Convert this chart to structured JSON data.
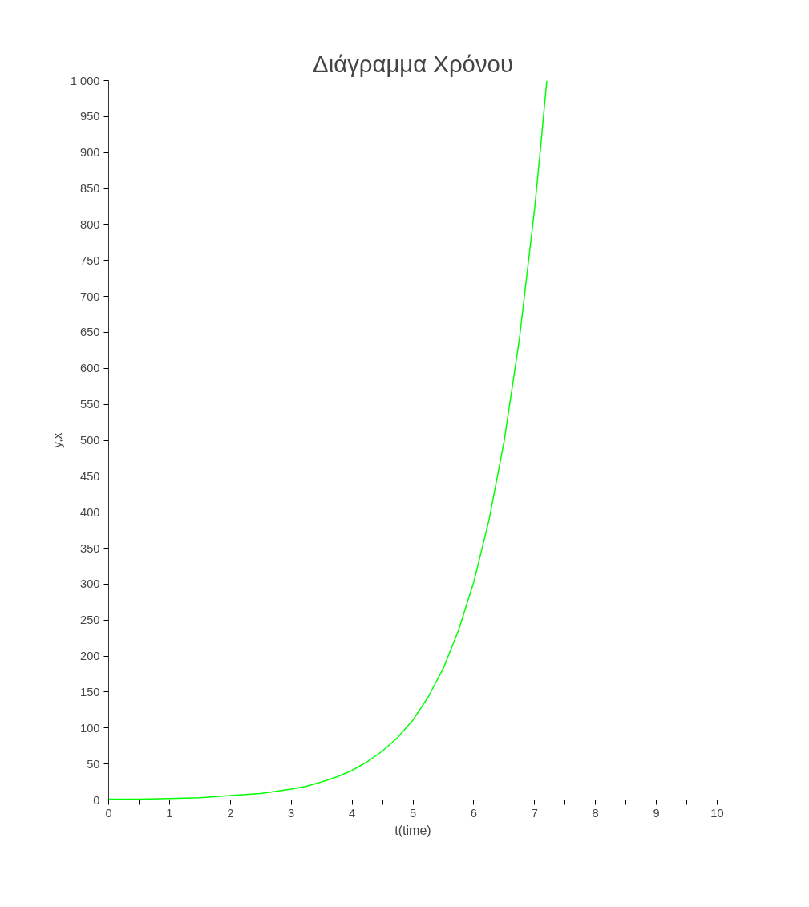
{
  "chart_data": {
    "type": "line",
    "title": "Διάγραμμα Χρόνου",
    "xlabel": "t(time)",
    "ylabel": "y,x",
    "x": [
      0,
      0.5,
      1,
      1.5,
      2,
      2.5,
      3,
      3.25,
      3.5,
      3.75,
      4,
      4.25,
      4.5,
      4.75,
      5,
      5.25,
      5.5,
      5.75,
      6,
      6.25,
      6.5,
      6.75,
      7,
      7.1,
      7.2
    ],
    "series": [
      {
        "color": "#00ff00",
        "values": [
          1,
          1,
          2,
          3,
          6,
          9,
          15,
          19,
          25,
          32,
          41,
          53,
          68,
          87,
          111,
          143,
          183,
          236,
          303,
          389,
          499,
          641,
          822,
          909,
          1000
        ]
      }
    ],
    "xlim": [
      0,
      10
    ],
    "ylim": [
      0,
      1000
    ],
    "xticks": [
      0,
      {
        "value": 0.5,
        "label": null
      },
      1,
      {
        "value": 1.5,
        "label": null
      },
      2,
      {
        "value": 2.5,
        "label": null
      },
      3,
      {
        "value": 3.5,
        "label": null
      },
      4,
      {
        "value": 4.5,
        "label": null
      },
      5,
      {
        "value": 5.5,
        "label": null
      },
      6,
      {
        "value": 6.5,
        "label": null
      },
      7,
      {
        "value": 7.5,
        "label": null
      },
      8,
      {
        "value": 8.5,
        "label": null
      },
      9,
      {
        "value": 9.5,
        "label": null
      },
      10
    ],
    "yticks": [
      0,
      50,
      100,
      150,
      200,
      250,
      300,
      350,
      400,
      450,
      500,
      550,
      600,
      650,
      700,
      750,
      800,
      850,
      900,
      950,
      {
        "value": 1000,
        "label": "1 000"
      }
    ],
    "grid": false,
    "marker": "none",
    "line_style": "solid"
  }
}
